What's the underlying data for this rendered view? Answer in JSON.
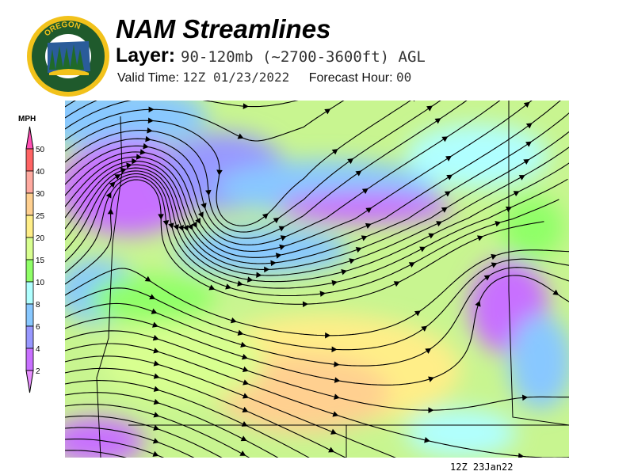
{
  "logo": {
    "text_top": "OREGON",
    "text_bottom": "DEPARTMENT OF FORESTRY",
    "colors": {
      "ring": "#f2c21b",
      "field": "#1f5a2c"
    }
  },
  "header": {
    "title": "NAM Streamlines",
    "layer_label": "Layer:",
    "layer_value": "90-120mb (~2700-3600ft) AGL",
    "valid_label": "Valid Time:",
    "valid_value": "12Z 01/23/2022",
    "forecast_label": "Forecast Hour:",
    "forecast_value": "00"
  },
  "legend": {
    "unit": "MPH",
    "bins": [
      {
        "label": "50",
        "color": "#ff6464"
      },
      {
        "label": "40",
        "color": "#ffaaa0"
      },
      {
        "label": "30",
        "color": "#ffd090"
      },
      {
        "label": "25",
        "color": "#ffee88"
      },
      {
        "label": "20",
        "color": "#d8ff90"
      },
      {
        "label": "15",
        "color": "#90ff68"
      },
      {
        "label": "10",
        "color": "#b0ffff"
      },
      {
        "label": "8",
        "color": "#88c8ff"
      },
      {
        "label": "6",
        "color": "#9898ff"
      },
      {
        "label": "4",
        "color": "#c870ff"
      },
      {
        "label": "2",
        "color": ""
      }
    ],
    "top_arrow_color": "#ff50b4",
    "bottom_arrow_color": "#e890ff"
  },
  "map": {
    "stamp": "12Z 23Jan22"
  }
}
